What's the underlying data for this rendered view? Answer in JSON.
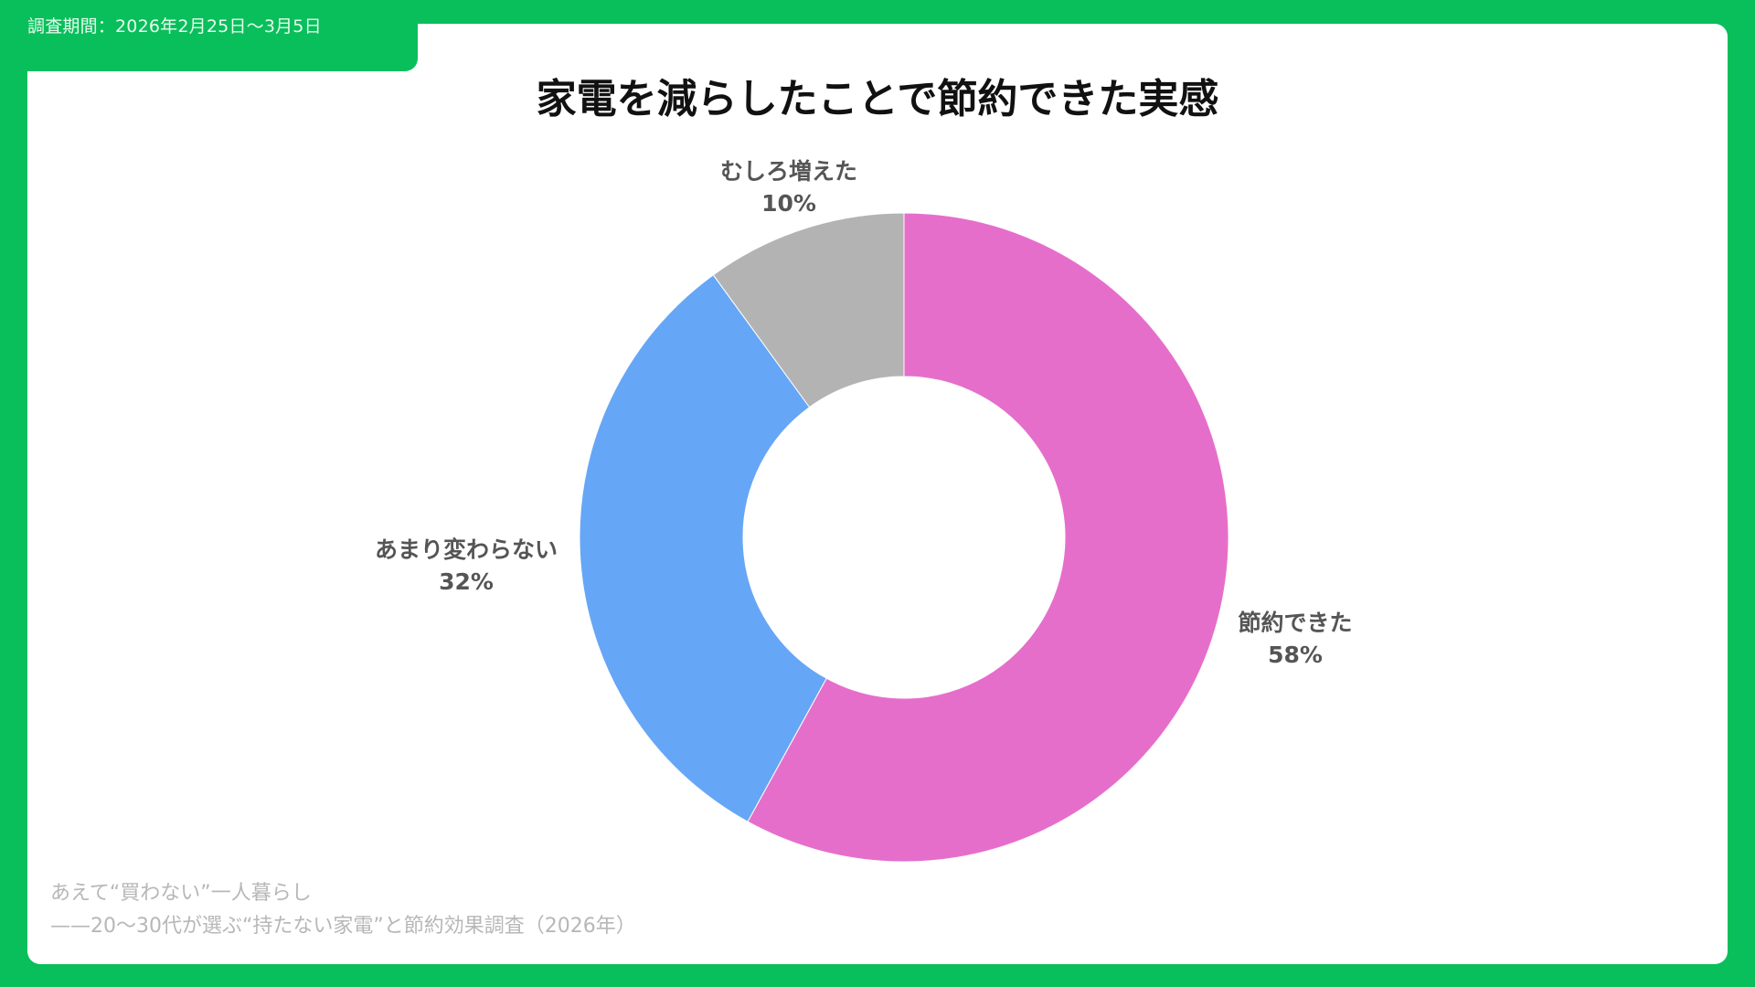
{
  "header": {
    "period": "調査期間：2026年2月25日〜3月5日"
  },
  "title": "家電を減らしたことで節約できた実感",
  "footer": {
    "line1": "あえて“買わない”一人暮らし",
    "line2": "——20〜30代が選ぶ“持たない家電”と節約効果調査（2026年）"
  },
  "labels": {
    "saved": {
      "name": "節約できた",
      "value": "58%"
    },
    "same": {
      "name": "あまり変わらない",
      "value": "32%"
    },
    "increased": {
      "name": "むしろ増えた",
      "value": "10%"
    }
  },
  "colors": {
    "background": "#08bf5b",
    "saved": "#e66ecb",
    "same": "#66a6f6",
    "increased": "#b4b3b4"
  },
  "chart_data": {
    "type": "pie",
    "variant": "donut",
    "title": "家電を減らしたことで節約できた実感",
    "categories": [
      "節約できた",
      "あまり変わらない",
      "むしろ増えた"
    ],
    "values": [
      58,
      32,
      10
    ],
    "unit": "%",
    "colors": [
      "#e66ecb",
      "#66a6f6",
      "#b4b3b4"
    ],
    "start_angle": "12 o'clock, clockwise",
    "legend": "none (direct labels)",
    "subtitle": "調査期間：2026年2月25日〜3月5日",
    "source": "あえて“買わない”一人暮らし ——20〜30代が選ぶ“持たない家電”と節約効果調査（2026年）"
  }
}
